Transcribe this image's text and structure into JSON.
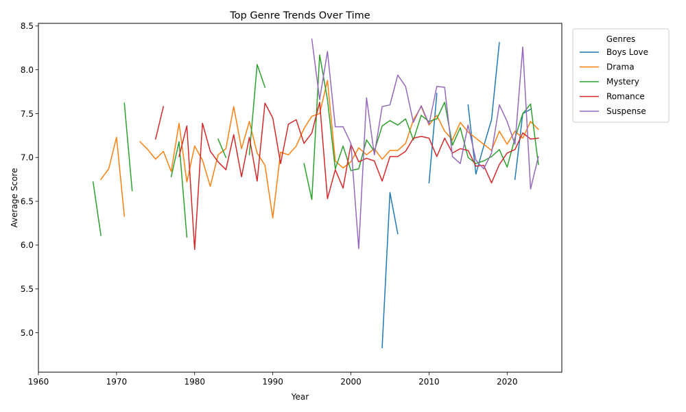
{
  "chart_data": {
    "type": "line",
    "title": "Top Genre Trends Over Time",
    "xlabel": "Year",
    "ylabel": "Average Score",
    "xlim": [
      1960,
      2027
    ],
    "ylim": [
      4.55,
      8.53
    ],
    "xticks": [
      1960,
      1970,
      1980,
      1990,
      2000,
      2010,
      2020
    ],
    "yticks": [
      5.0,
      5.5,
      6.0,
      6.5,
      7.0,
      7.5,
      8.0,
      8.5
    ],
    "ytick_labels": [
      "5.0",
      "5.5",
      "6.0",
      "6.5",
      "7.0",
      "7.5",
      "8.0",
      "8.5"
    ],
    "grid": false,
    "legend": {
      "title": "Genres",
      "placement": "outside-top-right"
    },
    "series": [
      {
        "name": "Boys Love",
        "color": "#1f77b4",
        "points": [
          [
            2004,
            4.83
          ],
          [
            2005,
            6.6
          ],
          [
            2006,
            6.13
          ],
          [
            null,
            null
          ],
          [
            2010,
            6.71
          ],
          [
            2011,
            7.73
          ],
          [
            null,
            null
          ],
          [
            2015,
            7.6
          ],
          [
            2016,
            6.81
          ],
          [
            2017,
            7.13
          ],
          [
            2018,
            7.43
          ],
          [
            2019,
            8.31
          ],
          [
            null,
            null
          ],
          [
            2021,
            6.75
          ],
          [
            2022,
            7.5
          ],
          [
            2023,
            7.55
          ]
        ]
      },
      {
        "name": "Drama",
        "color": "#ff7f0e",
        "points": [
          [
            1968,
            6.75
          ],
          [
            1969,
            6.87
          ],
          [
            1970,
            7.23
          ],
          [
            1971,
            6.33
          ],
          [
            null,
            null
          ],
          [
            1973,
            7.18
          ],
          [
            1974,
            7.09
          ],
          [
            1975,
            6.98
          ],
          [
            1976,
            7.07
          ],
          [
            1977,
            6.84
          ],
          [
            1978,
            7.39
          ],
          [
            1979,
            6.72
          ],
          [
            1980,
            7.13
          ],
          [
            1981,
            6.97
          ],
          [
            1982,
            6.67
          ],
          [
            1983,
            7.03
          ],
          [
            1984,
            7.1
          ],
          [
            1985,
            7.58
          ],
          [
            1986,
            7.1
          ],
          [
            1987,
            7.41
          ],
          [
            1988,
            7.05
          ],
          [
            1989,
            6.91
          ],
          [
            1990,
            6.31
          ],
          [
            1991,
            7.06
          ],
          [
            1992,
            7.03
          ],
          [
            1993,
            7.13
          ],
          [
            1994,
            7.33
          ],
          [
            1995,
            7.47
          ],
          [
            1996,
            7.5
          ],
          [
            1997,
            7.88
          ],
          [
            1998,
            6.96
          ],
          [
            1999,
            6.88
          ],
          [
            2000,
            6.95
          ],
          [
            2001,
            7.11
          ],
          [
            2002,
            7.03
          ],
          [
            2003,
            7.1
          ],
          [
            2004,
            6.98
          ],
          [
            2005,
            7.08
          ],
          [
            2006,
            7.08
          ],
          [
            2007,
            7.16
          ],
          [
            2008,
            7.43
          ],
          [
            2009,
            7.58
          ],
          [
            2010,
            7.37
          ],
          [
            2011,
            7.48
          ],
          [
            2012,
            7.3
          ],
          [
            2013,
            7.2
          ],
          [
            2014,
            7.4
          ],
          [
            2015,
            7.29
          ],
          [
            2016,
            7.22
          ],
          [
            2017,
            7.15
          ],
          [
            2018,
            7.08
          ],
          [
            2019,
            7.3
          ],
          [
            2020,
            7.15
          ],
          [
            2021,
            7.3
          ],
          [
            2022,
            7.22
          ],
          [
            2023,
            7.41
          ],
          [
            2024,
            7.32
          ]
        ]
      },
      {
        "name": "Mystery",
        "color": "#2ca02c",
        "points": [
          [
            1967,
            6.72
          ],
          [
            1968,
            6.11
          ],
          [
            null,
            null
          ],
          [
            1971,
            7.62
          ],
          [
            1972,
            6.62
          ],
          [
            null,
            null
          ],
          [
            1977,
            6.78
          ],
          [
            1978,
            7.18
          ],
          [
            1979,
            6.09
          ],
          [
            null,
            null
          ],
          [
            1983,
            7.21
          ],
          [
            1984,
            7.0
          ],
          [
            null,
            null
          ],
          [
            1987,
            7.03
          ],
          [
            1988,
            8.06
          ],
          [
            1989,
            7.8
          ],
          [
            null,
            null
          ],
          [
            1994,
            6.93
          ],
          [
            1995,
            6.52
          ],
          [
            1996,
            8.17
          ],
          [
            1997,
            7.66
          ],
          [
            1998,
            6.87
          ],
          [
            1999,
            7.13
          ],
          [
            2000,
            6.85
          ],
          [
            2001,
            6.87
          ],
          [
            2002,
            7.2
          ],
          [
            2003,
            7.07
          ],
          [
            2004,
            7.36
          ],
          [
            2005,
            7.42
          ],
          [
            2006,
            7.37
          ],
          [
            2007,
            7.44
          ],
          [
            2008,
            7.2
          ],
          [
            2009,
            7.48
          ],
          [
            2010,
            7.41
          ],
          [
            2011,
            7.44
          ],
          [
            2012,
            7.63
          ],
          [
            2013,
            7.14
          ],
          [
            2014,
            7.34
          ],
          [
            2015,
            7.0
          ],
          [
            2016,
            6.93
          ],
          [
            2017,
            6.96
          ],
          [
            2018,
            7.01
          ],
          [
            2019,
            7.09
          ],
          [
            2020,
            6.89
          ],
          [
            2021,
            7.22
          ],
          [
            2022,
            7.5
          ],
          [
            2023,
            7.61
          ],
          [
            2024,
            6.92
          ]
        ]
      },
      {
        "name": "Romance",
        "color": "#d62728",
        "points": [
          [
            1975,
            7.21
          ],
          [
            1976,
            7.58
          ],
          [
            null,
            null
          ],
          [
            1978,
            7.01
          ],
          [
            1979,
            7.36
          ],
          [
            1980,
            5.95
          ],
          [
            1981,
            7.39
          ],
          [
            1982,
            7.07
          ],
          [
            1983,
            6.95
          ],
          [
            1984,
            6.86
          ],
          [
            1985,
            7.26
          ],
          [
            1986,
            6.78
          ],
          [
            1987,
            7.23
          ],
          [
            1988,
            6.73
          ],
          [
            1989,
            7.62
          ],
          [
            1990,
            7.45
          ],
          [
            1991,
            6.93
          ],
          [
            1992,
            7.38
          ],
          [
            1993,
            7.43
          ],
          [
            1994,
            7.16
          ],
          [
            1995,
            7.28
          ],
          [
            1996,
            7.63
          ],
          [
            1997,
            6.53
          ],
          [
            1998,
            6.86
          ],
          [
            1999,
            6.65
          ],
          [
            2000,
            7.15
          ],
          [
            2001,
            6.95
          ],
          [
            2002,
            6.99
          ],
          [
            2003,
            6.96
          ],
          [
            2004,
            6.73
          ],
          [
            2005,
            7.01
          ],
          [
            2006,
            7.01
          ],
          [
            2007,
            7.07
          ],
          [
            2008,
            7.22
          ],
          [
            2009,
            7.24
          ],
          [
            2010,
            7.22
          ],
          [
            2011,
            7.01
          ],
          [
            2012,
            7.22
          ],
          [
            2013,
            7.05
          ],
          [
            2014,
            7.1
          ],
          [
            2015,
            7.08
          ],
          [
            2016,
            6.9
          ],
          [
            2017,
            6.91
          ],
          [
            2018,
            6.71
          ],
          [
            2019,
            6.92
          ],
          [
            2020,
            7.05
          ],
          [
            2021,
            7.09
          ],
          [
            2022,
            7.28
          ],
          [
            2023,
            7.21
          ],
          [
            2024,
            7.22
          ]
        ]
      },
      {
        "name": "Suspense",
        "color": "#9467bd",
        "points": [
          [
            1995,
            8.35
          ],
          [
            1996,
            7.66
          ],
          [
            1997,
            8.21
          ],
          [
            1998,
            7.35
          ],
          [
            1999,
            7.35
          ],
          [
            2000,
            7.16
          ],
          [
            2001,
            5.96
          ],
          [
            2002,
            7.68
          ],
          [
            2003,
            7.03
          ],
          [
            2004,
            7.58
          ],
          [
            2005,
            7.6
          ],
          [
            2006,
            7.94
          ],
          [
            2007,
            7.81
          ],
          [
            2008,
            7.4
          ],
          [
            2009,
            7.59
          ],
          [
            2010,
            7.38
          ],
          [
            2011,
            7.81
          ],
          [
            2012,
            7.8
          ],
          [
            2013,
            7.01
          ],
          [
            2014,
            6.93
          ],
          [
            2015,
            7.37
          ],
          [
            2016,
            6.97
          ],
          [
            2017,
            6.87
          ],
          [
            2018,
            7.05
          ],
          [
            2019,
            7.6
          ],
          [
            2020,
            7.41
          ],
          [
            2021,
            7.15
          ],
          [
            2022,
            8.26
          ],
          [
            2023,
            6.64
          ],
          [
            2024,
            7.01
          ]
        ]
      }
    ]
  }
}
